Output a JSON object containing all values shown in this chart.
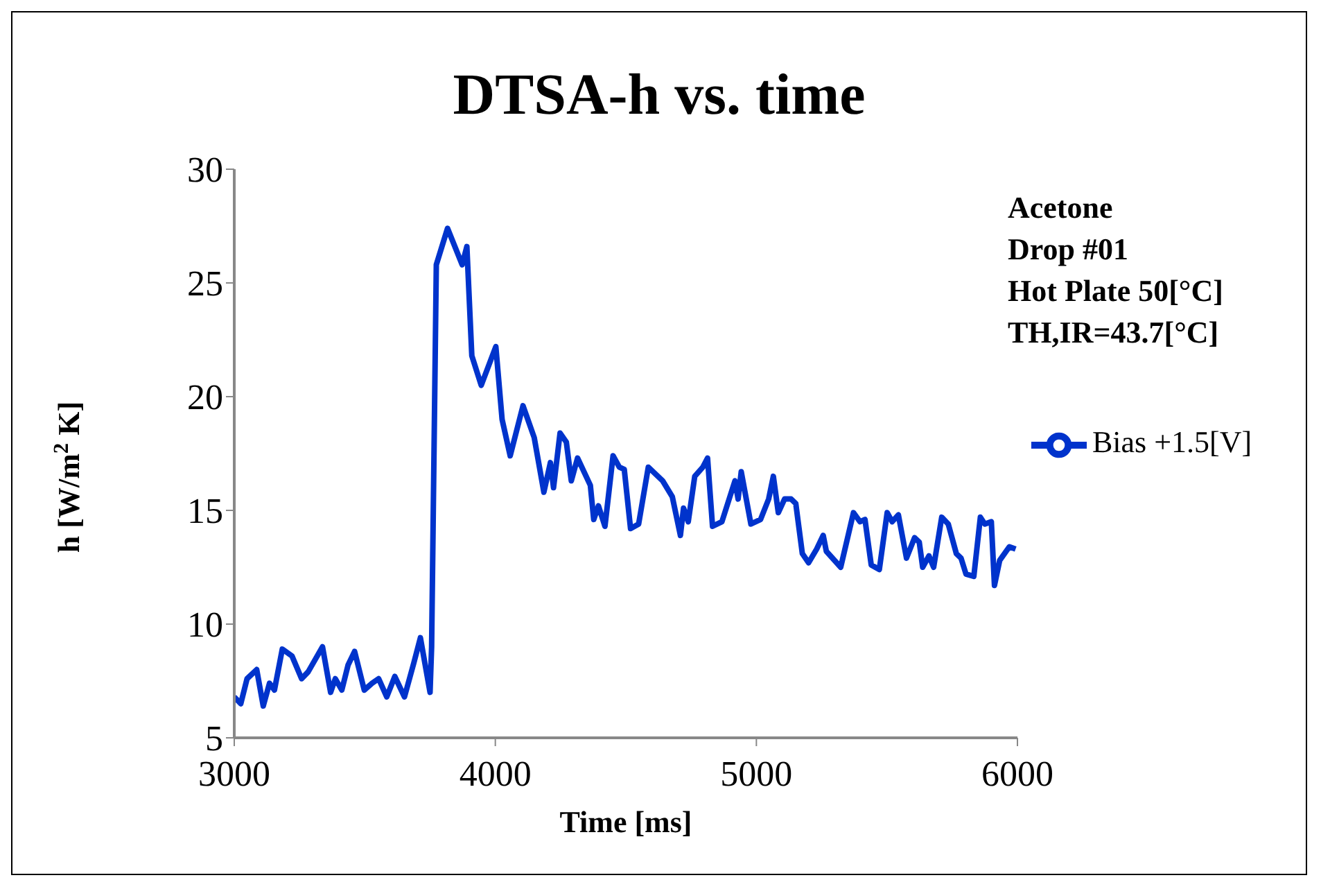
{
  "chart_data": {
    "type": "line",
    "title": "DTSA-h vs. time",
    "xlabel": "Time [ms]",
    "ylabel": "h [W/m$^{2}$ K]",
    "annotations": [
      "Acetone",
      "Drop #01",
      "Hot Plate 50[°C]",
      "TH,IR=43.7[°C]"
    ],
    "xlim": [
      3000,
      6000
    ],
    "xticks": [
      3000,
      4000,
      5000,
      6000
    ],
    "ylim": [
      5,
      30
    ],
    "yticks": [
      5,
      10,
      15,
      20,
      25,
      30
    ],
    "grid": false,
    "legend": "right",
    "marker": "none",
    "line_style": "solid",
    "x": [
      3000,
      3025,
      3049,
      3086,
      3111,
      3135,
      3154,
      3184,
      3221,
      3258,
      3283,
      3338,
      3369,
      3387,
      3412,
      3436,
      3461,
      3498,
      3528,
      3553,
      3584,
      3615,
      3652,
      3688,
      3713,
      3750,
      3756,
      3774,
      3817,
      3873,
      3891,
      3910,
      3946,
      4002,
      4026,
      4057,
      4106,
      4149,
      4186,
      4211,
      4223,
      4248,
      4272,
      4291,
      4315,
      4364,
      4377,
      4395,
      4420,
      4451,
      4475,
      4494,
      4518,
      4549,
      4586,
      4641,
      4678,
      4709,
      4721,
      4739,
      4764,
      4795,
      4813,
      4832,
      4868,
      4918,
      4930,
      4942,
      4979,
      5016,
      5047,
      5065,
      5084,
      5108,
      5133,
      5151,
      5176,
      5200,
      5231,
      5256,
      5268,
      5323,
      5372,
      5397,
      5416,
      5440,
      5471,
      5501,
      5520,
      5544,
      5575,
      5606,
      5624,
      5637,
      5661,
      5679,
      5710,
      5735,
      5766,
      5784,
      5803,
      5833,
      5858,
      5875,
      5900,
      5912,
      5932,
      5969,
      5993
    ],
    "series": [
      {
        "name": "Bias +1.5[V]",
        "color": "#0033cc",
        "values": [
          6.8,
          6.5,
          7.6,
          8.0,
          6.4,
          7.4,
          7.1,
          8.9,
          8.6,
          7.6,
          7.9,
          9.0,
          7.0,
          7.6,
          7.1,
          8.2,
          8.8,
          7.1,
          7.4,
          7.6,
          6.8,
          7.7,
          6.8,
          8.3,
          9.4,
          7.0,
          9.0,
          25.8,
          27.4,
          25.8,
          26.6,
          21.8,
          20.5,
          22.2,
          19.0,
          17.4,
          19.6,
          18.2,
          15.8,
          17.1,
          16.0,
          18.4,
          18.0,
          16.3,
          17.3,
          16.1,
          14.6,
          15.2,
          14.3,
          17.4,
          16.9,
          16.8,
          14.2,
          14.4,
          16.9,
          16.3,
          15.6,
          13.9,
          15.1,
          14.5,
          16.5,
          16.9,
          17.3,
          14.3,
          14.5,
          16.3,
          15.5,
          16.7,
          14.4,
          14.6,
          15.5,
          16.5,
          14.9,
          15.5,
          15.5,
          15.3,
          13.1,
          12.7,
          13.3,
          13.9,
          13.2,
          12.5,
          14.9,
          14.5,
          14.6,
          12.6,
          12.4,
          14.9,
          14.5,
          14.8,
          12.9,
          13.8,
          13.6,
          12.5,
          13.0,
          12.5,
          14.7,
          14.4,
          13.1,
          12.9,
          12.2,
          12.1,
          14.7,
          14.4,
          14.5,
          11.7,
          12.8,
          13.4,
          13.3
        ]
      }
    ]
  }
}
